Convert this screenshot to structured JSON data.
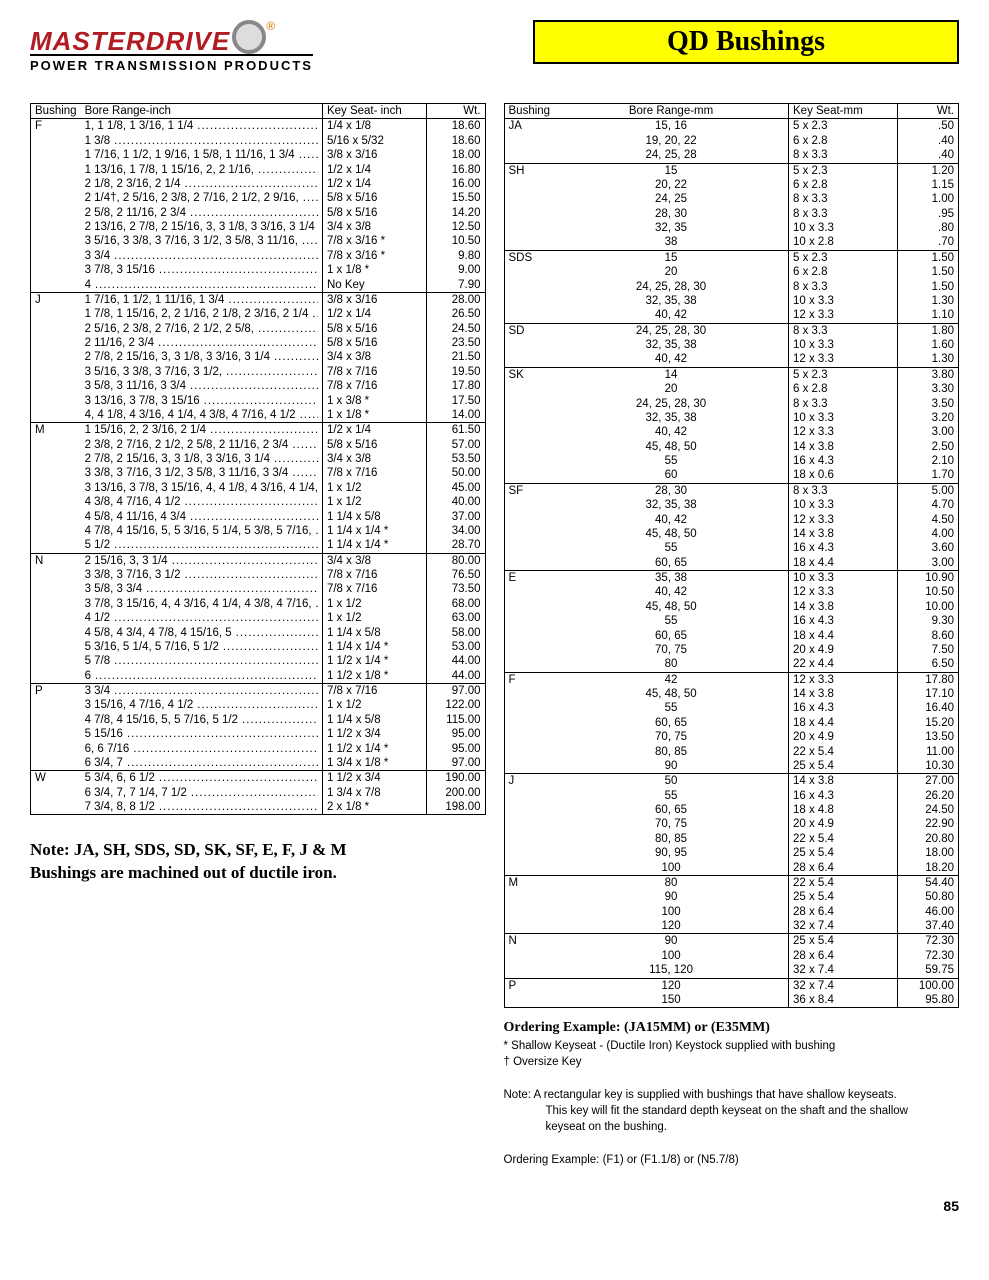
{
  "logo": {
    "brand": "MASTERDRIVE",
    "sub": "POWER TRANSMISSION PRODUCTS",
    "reg": "®"
  },
  "banner": "QD Bushings",
  "left_table": {
    "headers": [
      "Bushing",
      "Bore Range-inch",
      "Key Seat- inch",
      "Wt."
    ],
    "groups": [
      {
        "bush": "F",
        "rows": [
          {
            "bore": "1, 1 1/8, 1 3/16, 1 1/4",
            "ks": "1/4  x  1/8",
            "wt": "18.60"
          },
          {
            "bore": "1 3/8",
            "ks": "5/16  x  5/32",
            "wt": "18.60"
          },
          {
            "bore": "1 7/16, 1 1/2, 1 9/16, 1 5/8, 1 11/16, 1 3/4",
            "ks": "3/8  x  3/16",
            "wt": "18.00"
          },
          {
            "bore": "1 13/16, 1 7/8, 1 15/16, 2, 2 1/16,",
            "ks": "1/2  x  1/4",
            "wt": "16.80"
          },
          {
            "bore": "2 1/8, 2 3/16, 2 1/4",
            "ks": "1/2  x  1/4",
            "wt": "16.00"
          },
          {
            "bore": "2 1/4†, 2 5/16, 2 3/8, 2 7/16, 2 1/2, 2 9/16,",
            "ks": "5/8  x  5/16",
            "wt": "15.50"
          },
          {
            "bore": "2 5/8, 2 11/16, 2 3/4",
            "ks": "5/8  x  5/16",
            "wt": "14.20"
          },
          {
            "bore": "2 13/16, 2 7/8, 2 15/16, 3, 3 1/8, 3 3/16, 3 1/4",
            "ks": "3/4  x  3/8",
            "wt": "12.50"
          },
          {
            "bore": "3 5/16, 3 3/8, 3 7/16, 3 1/2, 3 5/8, 3 11/16,",
            "ks": "7/8  x  3/16  *",
            "wt": "10.50"
          },
          {
            "bore": "3 3/4",
            "ks": "7/8  x  3/16  *",
            "wt": "9.80"
          },
          {
            "bore": "3 7/8, 3 15/16",
            "ks": "1    x  1/8  *",
            "wt": "9.00"
          },
          {
            "bore": "4",
            "ks": "No Key",
            "wt": "7.90"
          }
        ]
      },
      {
        "bush": "J",
        "rows": [
          {
            "bore": "1 7/16, 1 1/2, 1 11/16, 1 3/4",
            "ks": "3/8  x  3/16",
            "wt": "28.00"
          },
          {
            "bore": "1 7/8, 1 15/16, 2, 2 1/16, 2 1/8, 2 3/16, 2 1/4",
            "ks": "1/2  x  1/4",
            "wt": "26.50"
          },
          {
            "bore": "2 5/16, 2 3/8, 2 7/16, 2 1/2, 2 5/8,",
            "ks": "5/8  x  5/16",
            "wt": "24.50"
          },
          {
            "bore": "2 11/16, 2 3/4",
            "ks": "5/8  x  5/16",
            "wt": "23.50"
          },
          {
            "bore": "2 7/8, 2 15/16, 3, 3 1/8, 3 3/16, 3 1/4",
            "ks": "3/4  x  3/8",
            "wt": "21.50"
          },
          {
            "bore": "3 5/16, 3 3/8, 3 7/16, 3 1/2,",
            "ks": "7/8  x  7/16",
            "wt": "19.50"
          },
          {
            "bore": "3 5/8, 3 11/16, 3 3/4",
            "ks": "7/8  x  7/16",
            "wt": "17.80"
          },
          {
            "bore": "3 13/16, 3 7/8, 3 15/16",
            "ks": "1    x  3/8  *",
            "wt": "17.50"
          },
          {
            "bore": "4, 4 1/8, 4 3/16, 4 1/4, 4 3/8, 4 7/16, 4 1/2",
            "ks": "1    x  1/8  *",
            "wt": "14.00"
          }
        ]
      },
      {
        "bush": "M",
        "rows": [
          {
            "bore": "1 15/16, 2, 2 3/16, 2 1/4",
            "ks": "1/2  x  1/4",
            "wt": "61.50"
          },
          {
            "bore": "2 3/8, 2 7/16, 2 1/2, 2 5/8, 2 11/16, 2 3/4",
            "ks": "5/8  x  5/16",
            "wt": "57.00"
          },
          {
            "bore": "2 7/8, 2 15/16, 3, 3 1/8, 3 3/16, 3 1/4",
            "ks": "3/4  x  3/8",
            "wt": "53.50"
          },
          {
            "bore": "3 3/8, 3 7/16, 3 1/2, 3 5/8, 3 11/16, 3 3/4",
            "ks": "7/8  x  7/16",
            "wt": "50.00"
          },
          {
            "bore": "3 13/16, 3 7/8, 3 15/16, 4, 4 1/8, 4 3/16, 4 1/4,",
            "ks": "1    x  1/2",
            "wt": "45.00"
          },
          {
            "bore": "4 3/8, 4 7/16, 4 1/2",
            "ks": "1    x  1/2",
            "wt": "40.00"
          },
          {
            "bore": "4 5/8, 4 11/16, 4 3/4",
            "ks": "1 1/4  x  5/8",
            "wt": "37.00"
          },
          {
            "bore": "4 7/8, 4 15/16, 5, 5 3/16, 5 1/4, 5 3/8, 5 7/16,",
            "ks": "1 1/4  x  1/4  *",
            "wt": "34.00"
          },
          {
            "bore": "5 1/2",
            "ks": "1 1/4  x  1/4  *",
            "wt": "28.70"
          }
        ]
      },
      {
        "bush": "N",
        "rows": [
          {
            "bore": "2 15/16, 3, 3 1/4",
            "ks": "3/4  x  3/8",
            "wt": "80.00"
          },
          {
            "bore": "3 3/8, 3 7/16, 3 1/2",
            "ks": "7/8  x  7/16",
            "wt": "76.50"
          },
          {
            "bore": "3 5/8, 3 3/4",
            "ks": "7/8  x  7/16",
            "wt": "73.50"
          },
          {
            "bore": "3 7/8, 3 15/16, 4, 4 3/16, 4 1/4, 4 3/8, 4 7/16,",
            "ks": "1    x  1/2",
            "wt": "68.00"
          },
          {
            "bore": "4 1/2",
            "ks": "1    x  1/2",
            "wt": "63.00"
          },
          {
            "bore": "4 5/8, 4 3/4, 4 7/8, 4 15/16, 5",
            "ks": "1 1/4  x  5/8",
            "wt": "58.00"
          },
          {
            "bore": "5 3/16, 5 1/4, 5 7/16, 5 1/2",
            "ks": "1 1/4  x  1/4  *",
            "wt": "53.00"
          },
          {
            "bore": "5 7/8",
            "ks": "1 1/2  x  1/4  *",
            "wt": "44.00"
          },
          {
            "bore": "6",
            "ks": "1 1/2  x  1/8  *",
            "wt": "44.00"
          }
        ]
      },
      {
        "bush": "P",
        "rows": [
          {
            "bore": "3 3/4",
            "ks": "7/8  x  7/16",
            "wt": "97.00"
          },
          {
            "bore": "3 15/16, 4 7/16, 4 1/2",
            "ks": "1    x  1/2",
            "wt": "122.00"
          },
          {
            "bore": "4 7/8, 4 15/16, 5, 5 7/16, 5 1/2",
            "ks": "1 1/4  x  5/8",
            "wt": "115.00"
          },
          {
            "bore": "5 15/16",
            "ks": "1 1/2  x  3/4",
            "wt": "95.00"
          },
          {
            "bore": "6, 6 7/16",
            "ks": "1 1/2  x  1/4  *",
            "wt": "95.00"
          },
          {
            "bore": "6 3/4, 7",
            "ks": "1 3/4  x  1/8  *",
            "wt": "97.00"
          }
        ]
      },
      {
        "bush": "W",
        "rows": [
          {
            "bore": "5 3/4, 6, 6 1/2",
            "ks": "1 1/2  x  3/4",
            "wt": "190.00"
          },
          {
            "bore": "6 3/4, 7, 7 1/4, 7 1/2",
            "ks": "1 3/4  x  7/8",
            "wt": "200.00"
          },
          {
            "bore": "7 3/4, 8, 8 1/2",
            "ks": "2    x  1/8  *",
            "wt": "198.00"
          }
        ]
      }
    ]
  },
  "right_table": {
    "headers": [
      "Bushing",
      "Bore Range-mm",
      "Key Seat-mm",
      "Wt."
    ],
    "groups": [
      {
        "bush": "JA",
        "rows": [
          {
            "bore": "15, 16",
            "ks": "5   x   2.3",
            "wt": ".50"
          },
          {
            "bore": "19, 20, 22",
            "ks": "6   x   2.8",
            "wt": ".40"
          },
          {
            "bore": "24, 25, 28",
            "ks": "8   x   3.3",
            "wt": ".40"
          }
        ]
      },
      {
        "bush": "SH",
        "rows": [
          {
            "bore": "15",
            "ks": "5   x   2.3",
            "wt": "1.20"
          },
          {
            "bore": "20, 22",
            "ks": "6   x   2.8",
            "wt": "1.15"
          },
          {
            "bore": "24, 25",
            "ks": "8   x   3.3",
            "wt": "1.00"
          },
          {
            "bore": "28, 30",
            "ks": "8   x   3.3",
            "wt": ".95"
          },
          {
            "bore": "32, 35",
            "ks": "10   x   3.3",
            "wt": ".80"
          },
          {
            "bore": "38",
            "ks": "10   x   2.8",
            "wt": ".70"
          }
        ]
      },
      {
        "bush": "SDS",
        "rows": [
          {
            "bore": "15",
            "ks": "5   x   2.3",
            "wt": "1.50"
          },
          {
            "bore": "20",
            "ks": "6   x   2.8",
            "wt": "1.50"
          },
          {
            "bore": "24, 25, 28, 30",
            "ks": "8   x   3.3",
            "wt": "1.50"
          },
          {
            "bore": "32, 35, 38",
            "ks": "10   x   3.3",
            "wt": "1.30"
          },
          {
            "bore": "40, 42",
            "ks": "12   x   3.3",
            "wt": "1.10"
          }
        ]
      },
      {
        "bush": "SD",
        "rows": [
          {
            "bore": "24, 25, 28, 30",
            "ks": "8   x   3.3",
            "wt": "1.80"
          },
          {
            "bore": "32, 35, 38",
            "ks": "10   x   3.3",
            "wt": "1.60"
          },
          {
            "bore": "40, 42",
            "ks": "12   x   3.3",
            "wt": "1.30"
          }
        ]
      },
      {
        "bush": "SK",
        "rows": [
          {
            "bore": "14",
            "ks": "5   x   2.3",
            "wt": "3.80"
          },
          {
            "bore": "20",
            "ks": "6   x   2.8",
            "wt": "3.30"
          },
          {
            "bore": "24, 25, 28, 30",
            "ks": "8   x   3.3",
            "wt": "3.50"
          },
          {
            "bore": "32, 35, 38",
            "ks": "10   x   3.3",
            "wt": "3.20"
          },
          {
            "bore": "40, 42",
            "ks": "12   x   3.3",
            "wt": "3.00"
          },
          {
            "bore": "45, 48, 50",
            "ks": "14   x   3.8",
            "wt": "2.50"
          },
          {
            "bore": "55",
            "ks": "16   x   4.3",
            "wt": "2.10"
          },
          {
            "bore": "60",
            "ks": "18   x   0.6",
            "wt": "1.70"
          }
        ]
      },
      {
        "bush": "SF",
        "rows": [
          {
            "bore": "28, 30",
            "ks": "8   x   3.3",
            "wt": "5.00"
          },
          {
            "bore": "32, 35, 38",
            "ks": "10   x   3.3",
            "wt": "4.70"
          },
          {
            "bore": "40, 42",
            "ks": "12   x   3.3",
            "wt": "4.50"
          },
          {
            "bore": "45, 48, 50",
            "ks": "14   x   3.8",
            "wt": "4.00"
          },
          {
            "bore": "55",
            "ks": "16   x   4.3",
            "wt": "3.60"
          },
          {
            "bore": "60, 65",
            "ks": "18   x   4.4",
            "wt": "3.00"
          }
        ]
      },
      {
        "bush": "E",
        "rows": [
          {
            "bore": "35, 38",
            "ks": "10   x   3.3",
            "wt": "10.90"
          },
          {
            "bore": "40, 42",
            "ks": "12   x   3.3",
            "wt": "10.50"
          },
          {
            "bore": "45, 48, 50",
            "ks": "14   x   3.8",
            "wt": "10.00"
          },
          {
            "bore": "55",
            "ks": "16   x   4.3",
            "wt": "9.30"
          },
          {
            "bore": "60, 65",
            "ks": "18   x   4.4",
            "wt": "8.60"
          },
          {
            "bore": "70, 75",
            "ks": "20   x   4.9",
            "wt": "7.50"
          },
          {
            "bore": "80",
            "ks": "22   x   4.4",
            "wt": "6.50"
          }
        ]
      },
      {
        "bush": "F",
        "rows": [
          {
            "bore": "42",
            "ks": "12   x   3.3",
            "wt": "17.80"
          },
          {
            "bore": "45, 48, 50",
            "ks": "14   x   3.8",
            "wt": "17.10"
          },
          {
            "bore": "55",
            "ks": "16   x   4.3",
            "wt": "16.40"
          },
          {
            "bore": "60, 65",
            "ks": "18   x   4.4",
            "wt": "15.20"
          },
          {
            "bore": "70, 75",
            "ks": "20   x   4.9",
            "wt": "13.50"
          },
          {
            "bore": "80, 85",
            "ks": "22   x   5.4",
            "wt": "11.00"
          },
          {
            "bore": "90",
            "ks": "25   x   5.4",
            "wt": "10.30"
          }
        ]
      },
      {
        "bush": "J",
        "rows": [
          {
            "bore": "50",
            "ks": "14   x   3.8",
            "wt": "27.00"
          },
          {
            "bore": "55",
            "ks": "16   x   4.3",
            "wt": "26.20"
          },
          {
            "bore": "60, 65",
            "ks": "18   x   4.8",
            "wt": "24.50"
          },
          {
            "bore": "70, 75",
            "ks": "20   x   4.9",
            "wt": "22.90"
          },
          {
            "bore": "80, 85",
            "ks": "22   x   5.4",
            "wt": "20.80"
          },
          {
            "bore": "90, 95",
            "ks": "25   x   5.4",
            "wt": "18.00"
          },
          {
            "bore": "100",
            "ks": "28   x   6.4",
            "wt": "18.20"
          }
        ]
      },
      {
        "bush": "M",
        "rows": [
          {
            "bore": "80",
            "ks": "22   x   5.4",
            "wt": "54.40"
          },
          {
            "bore": "90",
            "ks": "25   x   5.4",
            "wt": "50.80"
          },
          {
            "bore": "100",
            "ks": "28   x   6.4",
            "wt": "46.00"
          },
          {
            "bore": "120",
            "ks": "32   x   7.4",
            "wt": "37.40"
          }
        ]
      },
      {
        "bush": "N",
        "rows": [
          {
            "bore": "90",
            "ks": "25   x   5.4",
            "wt": "72.30"
          },
          {
            "bore": "100",
            "ks": "28   x   6.4",
            "wt": "72.30"
          },
          {
            "bore": "115, 120",
            "ks": "32   x   7.4",
            "wt": "59.75"
          }
        ]
      },
      {
        "bush": "P",
        "rows": [
          {
            "bore": "120",
            "ks": "32   x   7.4",
            "wt": "100.00"
          },
          {
            "bore": "150",
            "ks": "36   x   8.4",
            "wt": "95.80"
          }
        ]
      }
    ]
  },
  "note": "Note: JA, SH, SDS, SD, SK, SF, E, F, J & M Bushings are machined out of ductile iron.",
  "foot": {
    "ord1": "Ordering Example:   (JA15MM)  or (E35MM)",
    "star": "*  Shallow Keyseat - (Ductile Iron) Keystock supplied with bushing",
    "dag": "†  Oversize Key",
    "note2a": "Note:   A rectangular key is supplied with bushings that have shallow keyseats.",
    "note2b": "This key will fit the standard depth keyseat on the shaft and the shallow",
    "note2c": "keyseat on the bushing.",
    "ord2": "Ordering Example:   (F1)  or (F1.1/8)  or (N5.7/8)"
  },
  "page": "85"
}
